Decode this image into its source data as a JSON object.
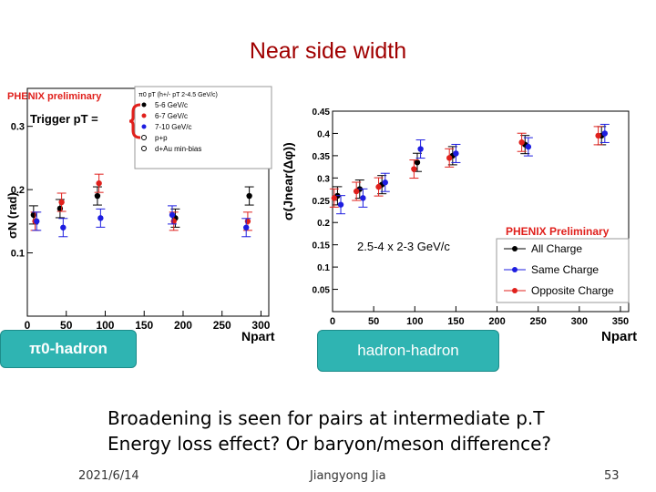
{
  "slide": {
    "title": "Near side width",
    "bullets": [
      "Broadening is seen for pairs at intermediate p.T",
      "Energy loss effect? Or baryon/meson difference?"
    ],
    "footer_date": "2021/6/14",
    "footer_author": "Jiangyong Jia",
    "footer_page": "53"
  },
  "labels": {
    "left_tag": "π0-hadron",
    "right_tag": "hadron-hadron",
    "trigger": "Trigger pT ="
  },
  "colors": {
    "title": "#a00000",
    "chip": "#2fb4b2",
    "red": "#e0201c",
    "blue": "#1d1de0",
    "black": "#000000"
  },
  "chart_data": [
    {
      "type": "scatter",
      "title": "PHENIX preliminary",
      "xlabel": "Npart",
      "ylabel": "σN (rad)",
      "xlim": [
        0,
        310
      ],
      "ylim": [
        0.0,
        0.36
      ],
      "xticks": [
        "0",
        "50",
        "100",
        "150",
        "200",
        "250",
        "300"
      ],
      "yticks": [
        "0.1",
        "0.2",
        "0.3"
      ],
      "legend_header": "π0 pT (h+/- pT 2-4.5 GeV/c)",
      "legend": [
        "5-6 GeV/c",
        "6-7 GeV/c",
        "7-10 GeV/c",
        "p+p",
        "d+Au min-bias"
      ],
      "series": [
        {
          "name": "5-6 GeV/c",
          "color": "black",
          "x": [
            8,
            42,
            90,
            190,
            285
          ],
          "y": [
            0.16,
            0.17,
            0.19,
            0.155,
            0.19
          ]
        },
        {
          "name": "6-7 GeV/c",
          "color": "red",
          "x": [
            10,
            44,
            92,
            188,
            283
          ],
          "y": [
            0.15,
            0.18,
            0.21,
            0.15,
            0.15
          ]
        },
        {
          "name": "7-10 GeV/c",
          "color": "blue",
          "x": [
            12,
            46,
            94,
            186,
            281
          ],
          "y": [
            0.15,
            0.14,
            0.155,
            0.16,
            0.14
          ]
        }
      ]
    },
    {
      "type": "scatter",
      "title": "PHENIX Preliminary",
      "xlabel": "Npart",
      "ylabel": "σ(Jnear(Δφ))",
      "annotation": "2.5-4 x 2-3 GeV/c",
      "xlim": [
        0,
        360
      ],
      "ylim": [
        0.0,
        0.45
      ],
      "xticks": [
        "0",
        "50",
        "100",
        "150",
        "200",
        "250",
        "300",
        "350"
      ],
      "yticks": [
        "0.05",
        "0.1",
        "0.15",
        "0.2",
        "0.25",
        "0.3",
        "0.35",
        "0.4",
        "0.45"
      ],
      "legend": [
        "All Charge",
        "Same Charge",
        "Opposite Charge"
      ],
      "series": [
        {
          "name": "All Charge",
          "color": "black",
          "x": [
            6,
            33,
            60,
            103,
            146,
            234,
            327
          ],
          "y": [
            0.26,
            0.275,
            0.285,
            0.335,
            0.35,
            0.375,
            0.395
          ]
        },
        {
          "name": "Same Charge",
          "color": "blue",
          "x": [
            10,
            37,
            64,
            107,
            150,
            238,
            331
          ],
          "y": [
            0.24,
            0.255,
            0.29,
            0.365,
            0.355,
            0.37,
            0.4
          ]
        },
        {
          "name": "Opposite Charge",
          "color": "red",
          "x": [
            2,
            29,
            56,
            99,
            142,
            230,
            323
          ],
          "y": [
            0.255,
            0.27,
            0.28,
            0.32,
            0.345,
            0.38,
            0.395
          ]
        }
      ]
    }
  ]
}
